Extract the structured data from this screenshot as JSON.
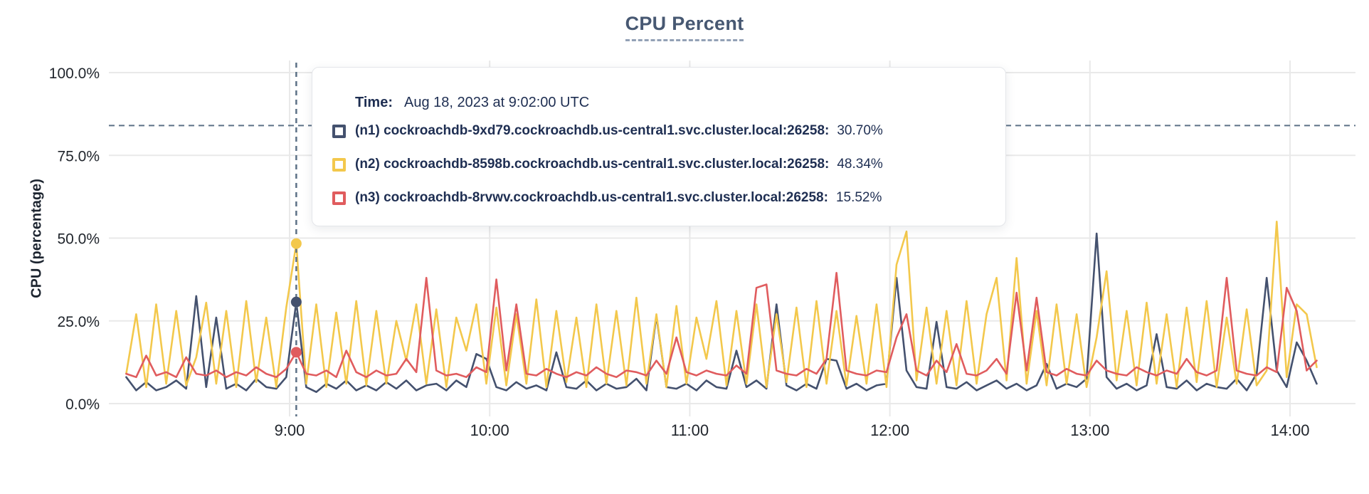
{
  "title": "CPU Percent",
  "tooltip": {
    "time_label": "Time:",
    "time_value": "Aug 18, 2023 at 9:02:00 UTC"
  },
  "colors": {
    "grid": "#e9e9e9",
    "axis_text": "#1f242b",
    "title": "#475872",
    "dashed_guide": "#5c7186",
    "tooltip_text": "#1e2e52",
    "background": "#ffffff"
  },
  "chart_data": {
    "type": "line",
    "title": "CPU Percent",
    "xlabel": "",
    "ylabel": "CPU (percentage)",
    "ylim": [
      0,
      100
    ],
    "grid": true,
    "legend_position": "hover-tooltip",
    "y_ticks": [
      {
        "value": 0,
        "label": "0.0%"
      },
      {
        "value": 25,
        "label": "25.0%"
      },
      {
        "value": 50,
        "label": "50.0%"
      },
      {
        "value": 75,
        "label": "75.0%"
      },
      {
        "value": 100,
        "label": "100.0%"
      }
    ],
    "x_ticks": [
      {
        "minutes": 540,
        "label": "9:00"
      },
      {
        "minutes": 600,
        "label": "10:00"
      },
      {
        "minutes": 660,
        "label": "11:00"
      },
      {
        "minutes": 720,
        "label": "12:00"
      },
      {
        "minutes": 780,
        "label": "13:00"
      },
      {
        "minutes": 840,
        "label": "14:00"
      }
    ],
    "x_start_minutes": 491,
    "x_step_minutes": 3,
    "threshold_line": {
      "value": 84,
      "style": "dashed"
    },
    "hover": {
      "minutes": 542,
      "time_display": "Aug 18, 2023 at 9:02:00 UTC"
    },
    "series": [
      {
        "id": "n1",
        "name": "(n1) cockroachdb-9xd79.cockroachdb.us-central1.svc.cluster.local:26258:",
        "color": "#44516e",
        "hover_value": 30.7,
        "hover_display": "30.70%",
        "values": [
          8,
          4,
          6.5,
          4,
          5,
          7,
          4.5,
          32.5,
          5,
          26,
          4.5,
          6,
          4,
          7.5,
          5,
          4.5,
          8,
          30.7,
          5,
          3.5,
          6,
          4.5,
          7,
          4,
          5.5,
          4,
          6.5,
          4.5,
          7,
          4,
          5.5,
          6,
          4,
          7,
          5,
          15,
          13.5,
          5,
          4,
          6.5,
          4.5,
          5.5,
          4,
          15.5,
          5,
          4.5,
          7,
          4,
          6,
          4.5,
          5,
          7.5,
          4,
          26.5,
          5,
          4.5,
          6,
          4,
          7,
          5,
          4.5,
          16,
          5,
          7,
          4.5,
          30,
          5.5,
          4,
          6,
          4.5,
          13.5,
          13,
          4.5,
          6,
          4,
          5.5,
          6,
          38,
          10,
          5,
          4.5,
          24.7,
          5,
          4.5,
          6.5,
          4,
          5.5,
          7,
          4.5,
          6,
          4,
          5.5,
          12,
          4.5,
          6,
          5,
          7.5,
          51.4,
          8,
          4.5,
          6,
          4,
          5.5,
          21,
          5,
          4.5,
          7,
          4,
          6,
          5,
          4.5,
          7.5,
          4,
          9,
          38,
          10,
          5,
          18.5,
          13,
          6
        ]
      },
      {
        "id": "n2",
        "name": "(n2) cockroachdb-8598b.cockroachdb.us-central1.svc.cluster.local:26258:",
        "color": "#f3c84c",
        "hover_value": 48.34,
        "hover_display": "48.34%",
        "values": [
          9,
          27,
          5,
          30,
          6,
          28,
          5.5,
          14,
          30.5,
          6,
          28,
          5,
          31,
          6.5,
          26,
          5,
          29,
          48.34,
          6,
          30,
          5,
          27.5,
          6,
          31,
          5.5,
          28,
          6,
          25,
          13,
          30,
          6,
          28.5,
          5,
          26,
          16,
          30,
          6,
          29,
          5.5,
          27,
          6,
          31.5,
          5,
          28,
          6.5,
          26,
          5,
          30,
          6,
          28,
          5.5,
          32,
          6,
          27,
          5,
          29.5,
          6,
          26,
          13.5,
          31,
          5.5,
          28,
          6,
          30,
          5,
          27,
          6.5,
          29,
          5,
          31,
          6,
          28,
          5.5,
          26.5,
          6,
          30,
          5,
          42,
          52,
          7,
          29,
          6,
          28,
          5.5,
          31,
          6,
          27,
          38,
          7,
          44,
          6,
          28,
          5.5,
          30,
          6,
          27,
          5,
          20,
          40,
          7,
          28,
          5.5,
          30.5,
          6,
          27,
          5,
          29,
          6.5,
          31,
          5,
          26,
          6,
          28.5,
          5.5,
          10,
          55,
          8,
          30,
          27,
          11
        ]
      },
      {
        "id": "n3",
        "name": "(n3) cockroachdb-8rvwv.cockroachdb.us-central1.svc.cluster.local:26258:",
        "color": "#e05c5e",
        "hover_value": 15.52,
        "hover_display": "15.52%",
        "values": [
          9,
          8,
          14.5,
          8.5,
          9.5,
          8,
          14,
          9,
          8.5,
          10,
          8,
          9.5,
          8.5,
          11,
          9,
          8,
          10.5,
          15.52,
          9,
          8.5,
          10,
          8,
          16,
          9.5,
          8,
          10,
          8.5,
          9,
          13.5,
          9.5,
          38,
          10,
          8.5,
          9,
          8,
          11,
          9.5,
          37.5,
          10,
          30,
          9,
          8.5,
          10.5,
          9,
          8,
          9.5,
          8.5,
          11,
          9,
          8,
          10,
          9.5,
          8.5,
          13,
          9,
          20,
          9.5,
          8.5,
          10,
          9,
          8.5,
          11.5,
          9,
          35,
          36,
          10,
          9,
          8.5,
          10.5,
          9,
          13.5,
          39.5,
          10,
          9,
          8.5,
          10,
          9.5,
          20,
          27,
          10,
          8.5,
          13,
          9.5,
          18,
          9,
          8.5,
          10,
          13.5,
          9,
          33.5,
          10,
          32,
          9.5,
          8.5,
          10.5,
          9,
          8.5,
          13,
          10,
          9,
          8.5,
          11,
          9.5,
          8.5,
          10,
          9,
          13.5,
          9.5,
          8.5,
          10,
          38,
          10,
          9,
          8.5,
          11,
          9.5,
          35,
          28,
          10,
          13
        ]
      }
    ]
  }
}
